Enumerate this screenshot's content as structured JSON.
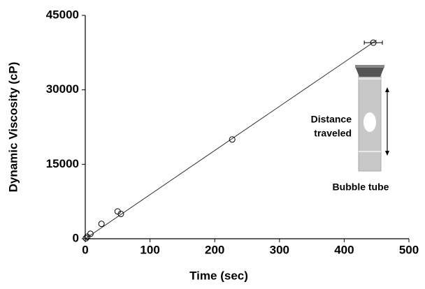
{
  "chart_data": {
    "type": "scatter",
    "xlabel": "Time (sec)",
    "ylabel": "Dynamic Viscosity (cP)",
    "x": [
      1,
      3,
      8,
      25,
      50,
      55,
      227,
      445
    ],
    "values": [
      100,
      400,
      1000,
      3000,
      5500,
      5000,
      20000,
      39500
    ],
    "x_errors": [
      null,
      null,
      null,
      null,
      null,
      null,
      null,
      14
    ],
    "color": "#000000",
    "trendline": {
      "x": [
        0,
        450
      ],
      "values": [
        0,
        40000
      ],
      "color": "#333333"
    },
    "xlim": [
      0,
      500
    ],
    "xticks": [
      0,
      100,
      200,
      300,
      400,
      500
    ],
    "ylim": [
      0,
      45000
    ],
    "yticks": [
      0,
      15000,
      30000,
      45000
    ],
    "grid": false,
    "annotations": {
      "distance": [
        "Distance",
        "traveled"
      ],
      "tube": "Bubble tube"
    }
  }
}
